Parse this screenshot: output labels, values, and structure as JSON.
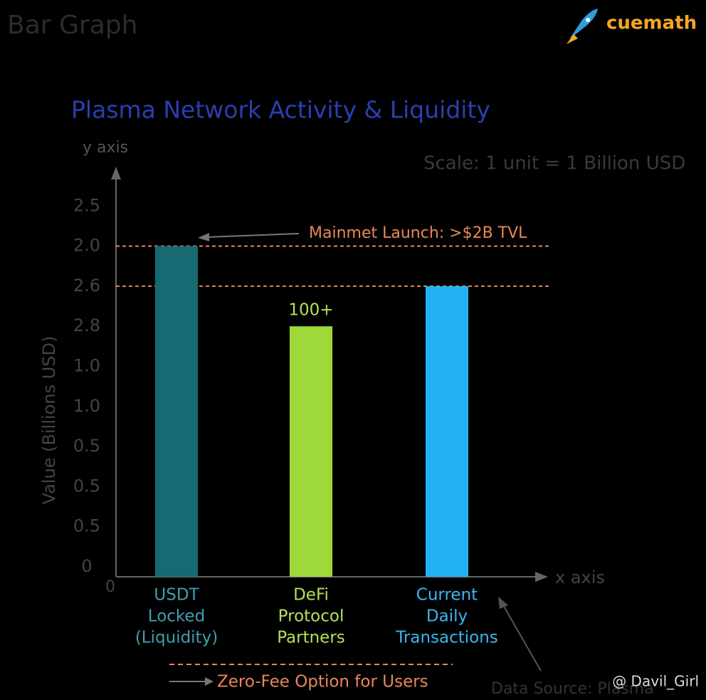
{
  "chart_data": {
    "type": "bar",
    "header": "Bar Graph",
    "brand": "cuemath",
    "title": "Plasma Network Activity & Liquidity",
    "y_axis_name": "y axis",
    "x_axis_name": "x axis",
    "y_label": "Value (Billions USD)",
    "origin_label": "0",
    "scale_note": "Scale: 1 unit = 1 Billion USD",
    "categories": [
      [
        "USDT",
        "Locked",
        "(Liquidity)"
      ],
      [
        "DeFi",
        "Protocol",
        "Partners"
      ],
      [
        "Current",
        "Daily",
        "Transactions"
      ]
    ],
    "values": [
      8,
      6,
      7
    ],
    "colors": [
      "#176a72",
      "#9ed83a",
      "#22b2f2"
    ],
    "label_colors": [
      "#3f9fb0",
      "#b4e05a",
      "#3cb6ee"
    ],
    "bar_annotation": "100+",
    "reference_lines": [
      8,
      7
    ],
    "reference_note": "Mainmet Launch: >$2B TVL",
    "footer_note": "Zero-Fee Option for Users",
    "source_note": "Data Source: Plasma",
    "watermark": "@ Davil_Girl",
    "ylim": [
      0,
      10
    ],
    "yticks": [
      {
        "value": 0,
        "label": "0"
      },
      {
        "value": 1,
        "label": "0.5"
      },
      {
        "value": 2,
        "label": "0.5"
      },
      {
        "value": 3,
        "label": "0.5"
      },
      {
        "value": 4,
        "label": "1.0"
      },
      {
        "value": 5,
        "label": "1.0"
      },
      {
        "value": 6,
        "label": "2.8"
      },
      {
        "value": 7,
        "label": "2.6"
      },
      {
        "value": 8,
        "label": "2.0"
      },
      {
        "value": 9,
        "label": "2.5"
      }
    ]
  }
}
